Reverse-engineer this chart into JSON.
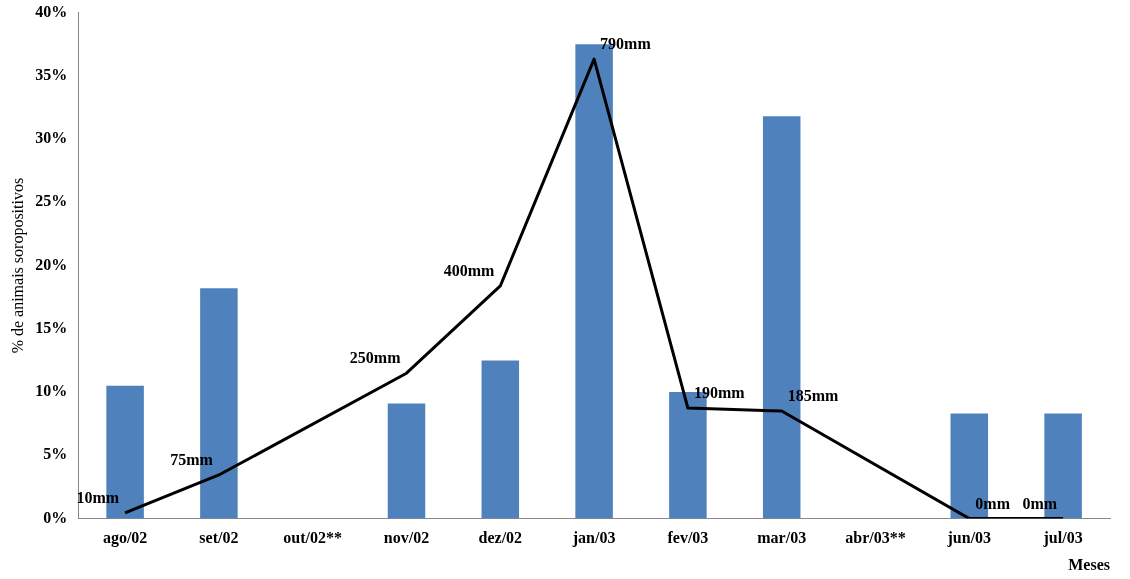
{
  "chart_data": {
    "type": "bar",
    "xlabel": "Meses",
    "ylabel": "% de animais soropositivos",
    "categories": [
      "ago/02",
      "set/02",
      "out/02**",
      "nov/02",
      "dez/02",
      "jan/03",
      "fev/03",
      "mar/03",
      "abr/03**",
      "jun/03",
      "jul/03"
    ],
    "series": [
      {
        "color": "#4f81bd",
        "values": [
          10.5,
          18.2,
          null,
          9.1,
          12.5,
          37.5,
          10,
          31.8,
          null,
          8.3,
          8.3
        ]
      },
      {
        "type": "line",
        "axis": "y2",
        "color": "#000000",
        "values": [
          10,
          75,
          null,
          250,
          400,
          790,
          190,
          185,
          null,
          0,
          0
        ],
        "value_labels": [
          "10mm",
          "75mm",
          null,
          "250mm",
          "400mm",
          "790mm",
          "190mm",
          "185mm",
          null,
          "0mm",
          "0mm"
        ]
      }
    ],
    "ylim": [
      0,
      40
    ],
    "yticks": [
      {
        "value": 0,
        "label": "0%"
      },
      {
        "value": 5,
        "label": "5%"
      },
      {
        "value": 10,
        "label": "10%"
      },
      {
        "value": 15,
        "label": "15%"
      },
      {
        "value": 20,
        "label": "20%"
      },
      {
        "value": 25,
        "label": "25%"
      },
      {
        "value": 30,
        "label": "30%"
      },
      {
        "value": 35,
        "label": "35%"
      },
      {
        "value": 40,
        "label": "40%"
      }
    ],
    "y2lim": [
      0,
      870
    ],
    "grid": false,
    "legend": false,
    "marker": "none",
    "line_style": "solid"
  }
}
